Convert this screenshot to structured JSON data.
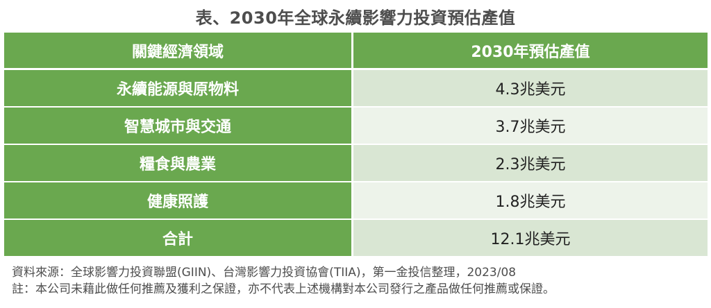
{
  "title": "表、2030年全球永續影響力投資預估產值",
  "table": {
    "headers": [
      "關鍵經濟領域",
      "2030年預估產值"
    ],
    "rows": [
      {
        "label": "永續能源與原物料",
        "value": "4.3兆美元"
      },
      {
        "label": "智慧城市與交通",
        "value": "3.7兆美元"
      },
      {
        "label": "糧食與農業",
        "value": "2.3兆美元"
      },
      {
        "label": "健康照護",
        "value": "1.8兆美元"
      },
      {
        "label": "合計",
        "value": "12.1兆美元"
      }
    ]
  },
  "notes": {
    "source": "資料來源：全球影響力投資聯盟(GIIN)、台灣影響力投資協會(TIIA)，第一金投信整理，2023/08",
    "disclaimer": "註：本公司未藉此做任何推薦及獲利之保證，亦不代表上述機構對本公司發行之產品做任何推薦或保證。"
  },
  "colors": {
    "header_green": "#6aa84f",
    "row_light": "#d9e6d3",
    "row_lighter": "#edf3ea",
    "title_gray": "#4d4d4d"
  }
}
